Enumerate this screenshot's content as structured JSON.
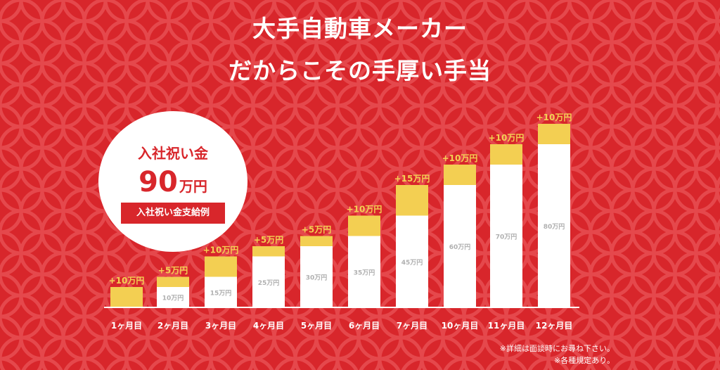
{
  "heading": {
    "line1": "大手自動車メーカー",
    "line2": "だからこその手厚い手当"
  },
  "badge": {
    "title": "入社祝い金",
    "amount": "90",
    "unit": "万円",
    "label": "入社祝い金支給例"
  },
  "colors": {
    "background": "#d8262b",
    "bonus": "#f3cf52",
    "base": "#ffffff",
    "increment_text": "#f3cf52",
    "base_text": "#b0b0b0"
  },
  "chart_data": {
    "type": "bar",
    "stacked": true,
    "unit": "万円",
    "categories": [
      "1ヶ月目",
      "2ヶ月目",
      "3ヶ月目",
      "4ヶ月目",
      "5ヶ月目",
      "6ヶ月目",
      "7ヶ月目",
      "10ヶ月目",
      "11ヶ月目",
      "12ヶ月目"
    ],
    "series": [
      {
        "values": [
          0,
          10,
          15,
          25,
          30,
          35,
          45,
          60,
          70,
          80
        ],
        "labels": [
          "",
          "10万円",
          "15万円",
          "25万円",
          "30万円",
          "35万円",
          "45万円",
          "60万円",
          "70万円",
          "80万円"
        ]
      },
      {
        "values": [
          10,
          5,
          10,
          5,
          5,
          10,
          15,
          10,
          10,
          10
        ],
        "labels": [
          "+10万円",
          "+5万円",
          "+10万円",
          "+5万円",
          "+5万円",
          "+10万円",
          "+15万円",
          "+10万円",
          "+10万円",
          "+10万円"
        ]
      }
    ],
    "ylim": [
      0,
      90
    ]
  },
  "notes": [
    "※詳細は面談時にお尋ね下さい。",
    "※各種規定あり。"
  ]
}
